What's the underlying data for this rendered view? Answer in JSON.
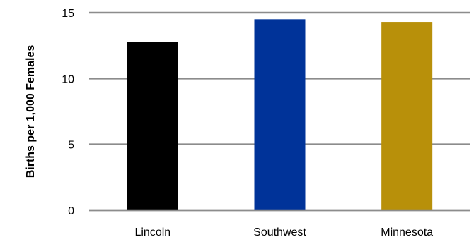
{
  "chart_data": {
    "type": "bar",
    "categories": [
      "Lincoln",
      "Southwest",
      "Minnesota"
    ],
    "values": [
      12.8,
      14.5,
      14.3
    ],
    "colors": [
      "#000000",
      "#003399",
      "#b8900a"
    ],
    "title": "",
    "xlabel": "",
    "ylabel": "Births per 1,000 Females",
    "ylim": [
      0,
      15
    ],
    "yticks": [
      0,
      5,
      10,
      15
    ],
    "grid": true,
    "legend": "none"
  }
}
